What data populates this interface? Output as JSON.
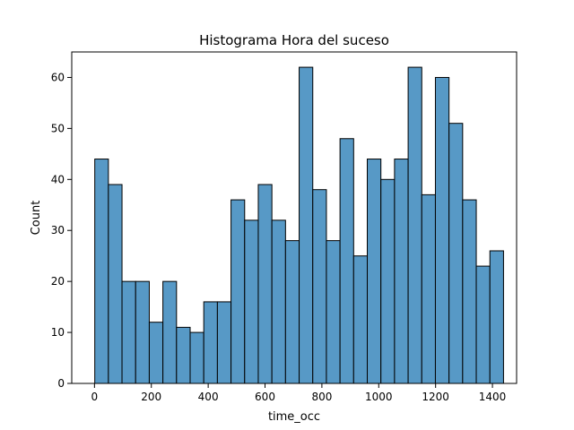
{
  "chart_data": {
    "type": "bar",
    "title": "Histograma Hora del suceso",
    "xlabel": "time_occ",
    "ylabel": "Count",
    "xlim": [
      -80,
      1485
    ],
    "ylim": [
      0,
      65
    ],
    "xticks": [
      0,
      200,
      400,
      600,
      800,
      1000,
      1200,
      1400
    ],
    "yticks": [
      0,
      10,
      20,
      30,
      40,
      50,
      60
    ],
    "bins": {
      "start": 1,
      "end": 1439,
      "count": 30
    },
    "values": [
      44,
      39,
      20,
      20,
      12,
      20,
      11,
      10,
      16,
      16,
      36,
      32,
      39,
      32,
      28,
      62,
      38,
      28,
      48,
      25,
      44,
      40,
      44,
      62,
      37,
      60,
      51,
      36,
      23,
      26
    ],
    "grid": false,
    "bar_color": "#5799c6",
    "edge_color": "#000000"
  }
}
